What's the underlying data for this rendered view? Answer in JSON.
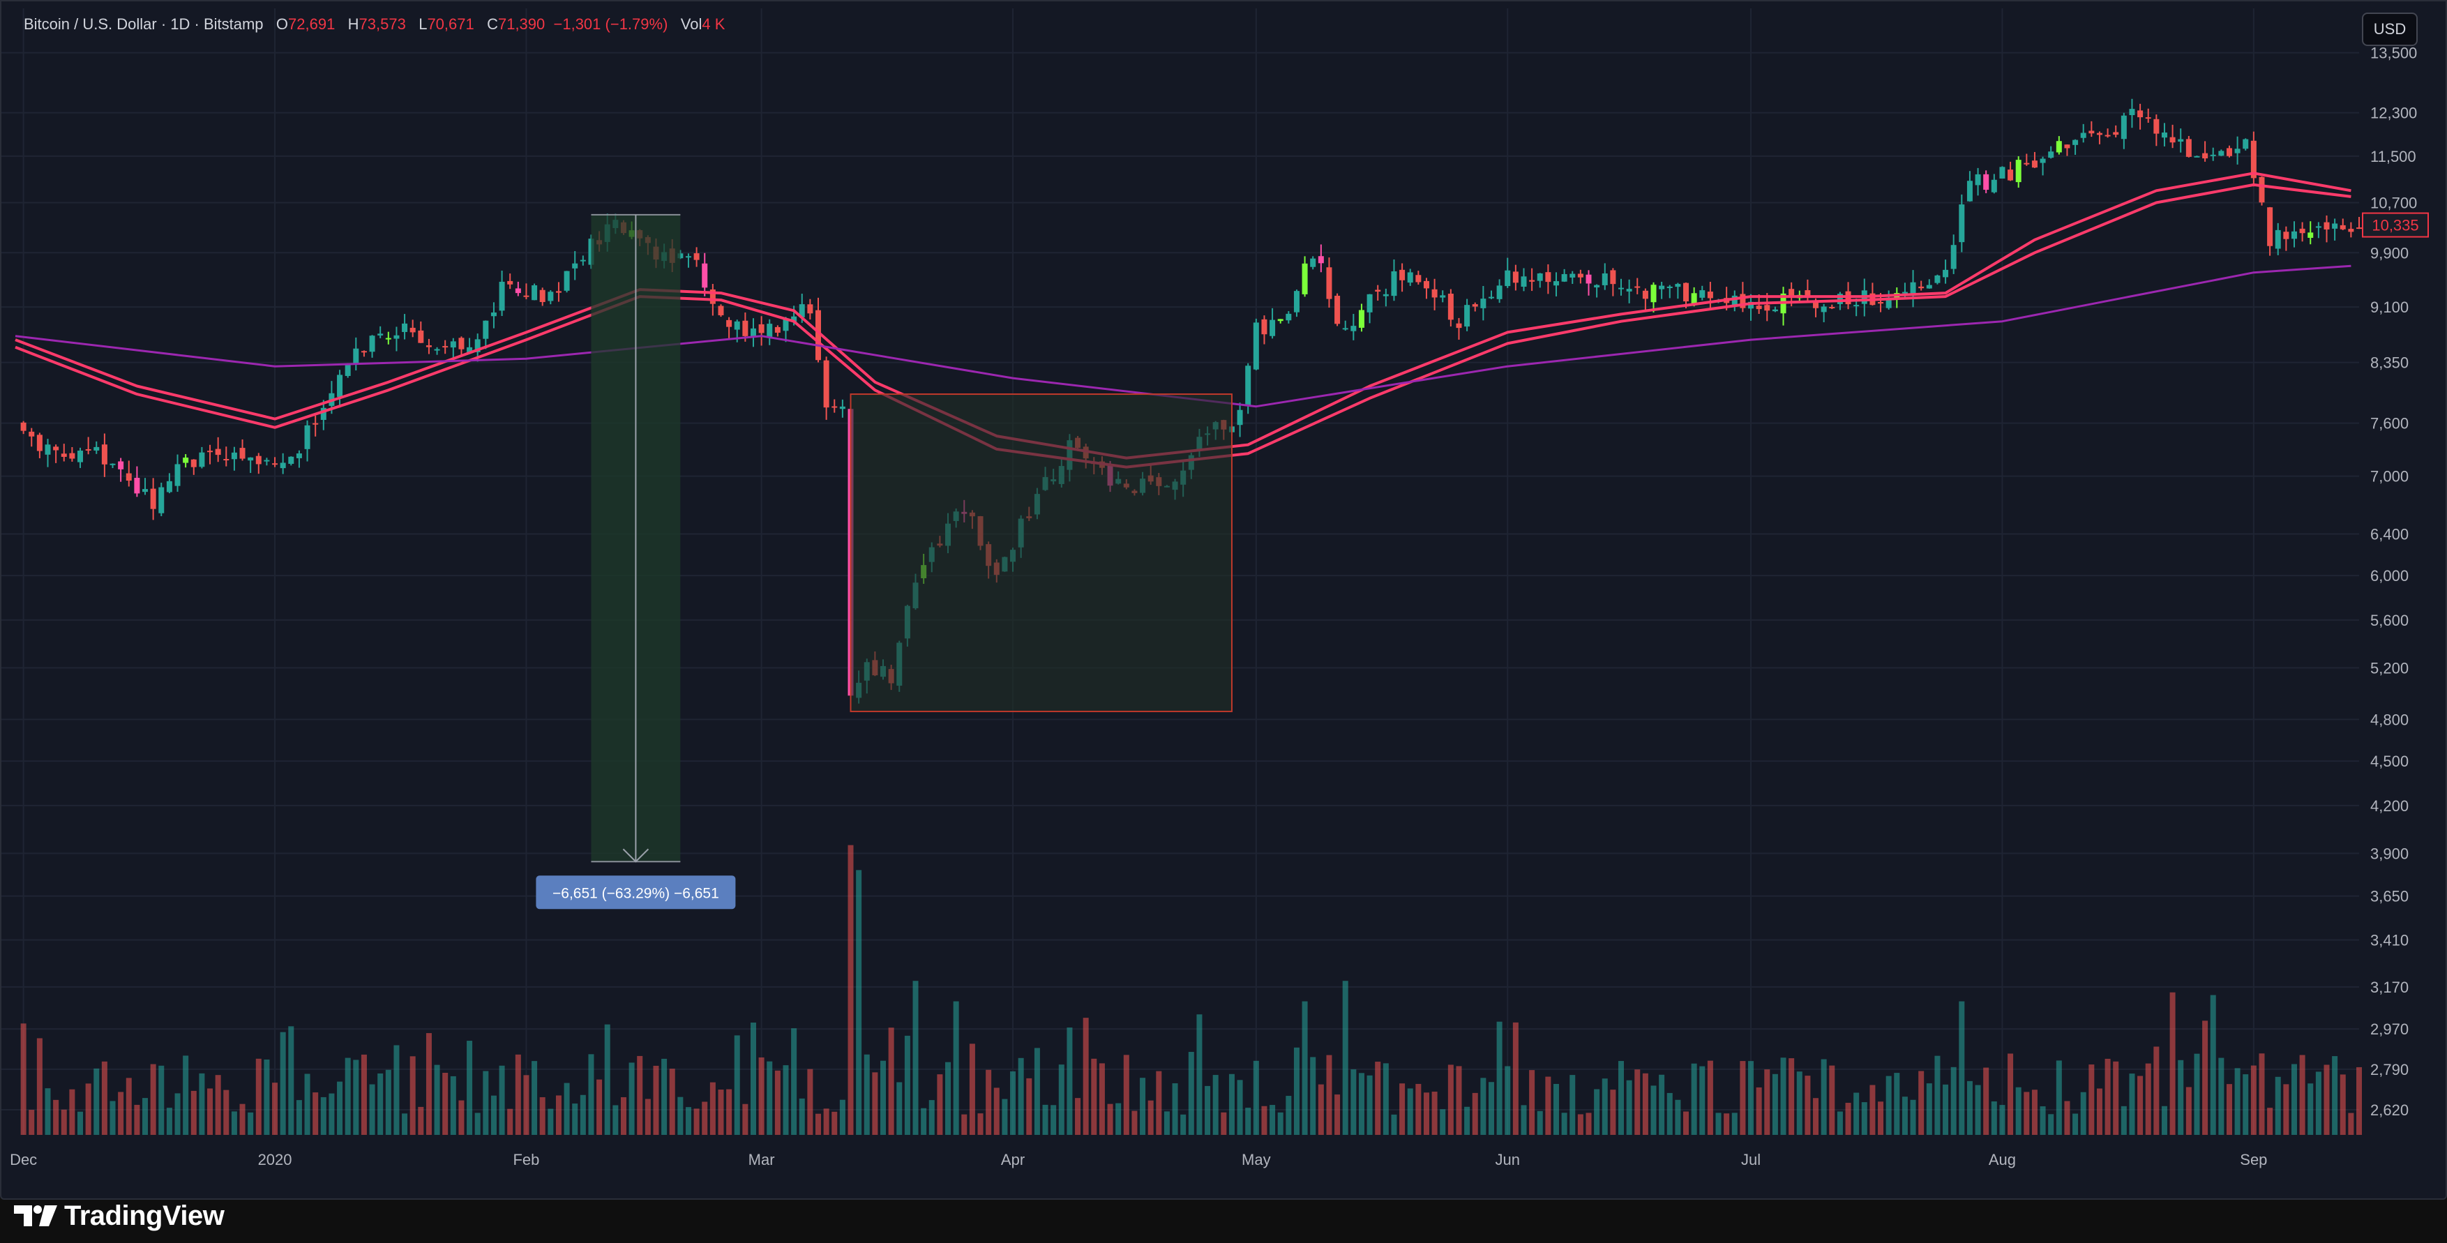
{
  "legend": {
    "symbol": "Bitcoin / U.S. Dollar · 1D · Bitstamp",
    "o_label": "O",
    "o": "72,691",
    "h_label": "H",
    "h": "73,573",
    "l_label": "L",
    "l": "70,671",
    "c_label": "C",
    "c": "71,390",
    "change": "−1,301 (−1.79%)",
    "vol_label": "Vol",
    "vol": "4 K"
  },
  "currency": "USD",
  "brand": {
    "name": "TradingView"
  },
  "colors": {
    "background": "#141824",
    "up": "#26a69a",
    "up_highlight": "#7cff3a",
    "down": "#ef5350",
    "down_highlight": "#ff4fa8",
    "ma_fast": "#ff3b6b",
    "ma_slow": "#9c27b0",
    "measure_green": "#1e3a2a",
    "measure_box": "#1f2e26",
    "measure_box_border": "#c0392b",
    "price_tag": "#f23645",
    "measure_label_bg": "#5b7fbf"
  },
  "icons": {
    "brand_logo": "tradingview-logo-icon"
  },
  "chart_data": {
    "type": "candlestick",
    "title": "Bitcoin / U.S. Dollar · 1D · Bitstamp",
    "x_range": [
      "2019-11-30",
      "2020-09-14"
    ],
    "x_tick_labels": [
      {
        "label": "Dec",
        "date": "2019-12-01"
      },
      {
        "label": "2020",
        "date": "2020-01-01"
      },
      {
        "label": "Feb",
        "date": "2020-02-01"
      },
      {
        "label": "Mar",
        "date": "2020-03-01"
      },
      {
        "label": "Apr",
        "date": "2020-04-01"
      },
      {
        "label": "May",
        "date": "2020-05-01"
      },
      {
        "label": "Jun",
        "date": "2020-06-01"
      },
      {
        "label": "Jul",
        "date": "2020-07-01"
      },
      {
        "label": "Aug",
        "date": "2020-08-01"
      },
      {
        "label": "Sep",
        "date": "2020-09-01"
      }
    ],
    "y_scale": "log",
    "y_range": [
      2520,
      14000
    ],
    "y_ticks": [
      13500,
      12300,
      11500,
      10700,
      9900,
      9100,
      8350,
      7600,
      7000,
      6400,
      6000,
      5600,
      5200,
      4800,
      4500,
      4200,
      3900,
      3650,
      3410,
      3170,
      2970,
      2790,
      2620
    ],
    "last_price_tag": "10,335",
    "close_path": [
      [
        "2019-11-30",
        7600
      ],
      [
        "2019-12-04",
        7250
      ],
      [
        "2019-12-10",
        7250
      ],
      [
        "2019-12-17",
        6750
      ],
      [
        "2019-12-20",
        7150
      ],
      [
        "2019-12-26",
        7200
      ],
      [
        "2019-12-31",
        7200
      ],
      [
        "2020-01-04",
        7300
      ],
      [
        "2020-01-08",
        8050
      ],
      [
        "2020-01-14",
        8800
      ],
      [
        "2020-01-19",
        8700
      ],
      [
        "2020-01-25",
        8500
      ],
      [
        "2020-01-29",
        9350
      ],
      [
        "2020-02-04",
        9300
      ],
      [
        "2020-02-08",
        9850
      ],
      [
        "2020-02-11",
        10250
      ],
      [
        "2020-02-14",
        10300
      ],
      [
        "2020-02-18",
        9800
      ],
      [
        "2020-02-22",
        9700
      ],
      [
        "2020-02-26",
        8800
      ],
      [
        "2020-03-03",
        8800
      ],
      [
        "2020-03-07",
        9100
      ],
      [
        "2020-03-09",
        7900
      ],
      [
        "2020-03-11",
        7800
      ],
      [
        "2020-03-12",
        5000
      ],
      [
        "2020-03-14",
        5250
      ],
      [
        "2020-03-17",
        5100
      ],
      [
        "2020-03-20",
        6000
      ],
      [
        "2020-03-23",
        6300
      ],
      [
        "2020-03-26",
        6700
      ],
      [
        "2020-03-30",
        6000
      ],
      [
        "2020-04-04",
        6800
      ],
      [
        "2020-04-08",
        7300
      ],
      [
        "2020-04-12",
        7000
      ],
      [
        "2020-04-16",
        6900
      ],
      [
        "2020-04-20",
        6900
      ],
      [
        "2020-04-25",
        7500
      ],
      [
        "2020-04-29",
        7700
      ],
      [
        "2020-05-01",
        8800
      ],
      [
        "2020-05-05",
        9000
      ],
      [
        "2020-05-08",
        9900
      ],
      [
        "2020-05-12",
        8700
      ],
      [
        "2020-05-15",
        9300
      ],
      [
        "2020-05-20",
        9600
      ],
      [
        "2020-05-26",
        8900
      ],
      [
        "2020-06-01",
        9500
      ],
      [
        "2020-06-08",
        9600
      ],
      [
        "2020-06-15",
        9400
      ],
      [
        "2020-06-22",
        9300
      ],
      [
        "2020-06-30",
        9100
      ],
      [
        "2020-07-07",
        9200
      ],
      [
        "2020-07-14",
        9200
      ],
      [
        "2020-07-21",
        9400
      ],
      [
        "2020-07-25",
        9700
      ],
      [
        "2020-07-28",
        11000
      ],
      [
        "2020-08-02",
        11200
      ],
      [
        "2020-08-08",
        11700
      ],
      [
        "2020-08-14",
        11800
      ],
      [
        "2020-08-17",
        12300
      ],
      [
        "2020-08-24",
        11600
      ],
      [
        "2020-08-31",
        11700
      ],
      [
        "2020-09-03",
        10100
      ],
      [
        "2020-09-07",
        10300
      ],
      [
        "2020-09-13",
        10335
      ]
    ],
    "series": [
      {
        "name": "",
        "type": "line",
        "points": [
          [
            "2019-11-30",
            8550
          ],
          [
            "2019-12-15",
            7950
          ],
          [
            "2020-01-01",
            7550
          ],
          [
            "2020-01-15",
            8000
          ],
          [
            "2020-02-01",
            8650
          ],
          [
            "2020-02-15",
            9250
          ],
          [
            "2020-02-25",
            9200
          ],
          [
            "2020-03-05",
            8900
          ],
          [
            "2020-03-15",
            8000
          ],
          [
            "2020-03-30",
            7300
          ],
          [
            "2020-04-15",
            7100
          ],
          [
            "2020-04-30",
            7250
          ],
          [
            "2020-05-15",
            7900
          ],
          [
            "2020-06-01",
            8600
          ],
          [
            "2020-06-15",
            8900
          ],
          [
            "2020-07-01",
            9150
          ],
          [
            "2020-07-15",
            9200
          ],
          [
            "2020-07-25",
            9250
          ],
          [
            "2020-08-05",
            9900
          ],
          [
            "2020-08-20",
            10700
          ],
          [
            "2020-09-01",
            11000
          ],
          [
            "2020-09-13",
            10800
          ]
        ]
      },
      {
        "name": "",
        "type": "line",
        "points": [
          [
            "2019-11-30",
            8650
          ],
          [
            "2019-12-15",
            8050
          ],
          [
            "2020-01-01",
            7650
          ],
          [
            "2020-01-15",
            8100
          ],
          [
            "2020-02-01",
            8750
          ],
          [
            "2020-02-15",
            9350
          ],
          [
            "2020-02-25",
            9300
          ],
          [
            "2020-03-05",
            9050
          ],
          [
            "2020-03-15",
            8100
          ],
          [
            "2020-03-30",
            7450
          ],
          [
            "2020-04-15",
            7200
          ],
          [
            "2020-04-30",
            7350
          ],
          [
            "2020-05-15",
            8050
          ],
          [
            "2020-06-01",
            8750
          ],
          [
            "2020-06-15",
            9000
          ],
          [
            "2020-07-01",
            9250
          ],
          [
            "2020-07-15",
            9250
          ],
          [
            "2020-07-25",
            9300
          ],
          [
            "2020-08-05",
            10100
          ],
          [
            "2020-08-20",
            10900
          ],
          [
            "2020-09-01",
            11200
          ],
          [
            "2020-09-13",
            10900
          ]
        ]
      },
      {
        "name": "",
        "type": "line",
        "points": [
          [
            "2019-11-30",
            8700
          ],
          [
            "2020-01-01",
            8300
          ],
          [
            "2020-02-01",
            8400
          ],
          [
            "2020-03-01",
            8700
          ],
          [
            "2020-04-01",
            8150
          ],
          [
            "2020-05-01",
            7800
          ],
          [
            "2020-06-01",
            8300
          ],
          [
            "2020-07-01",
            8650
          ],
          [
            "2020-08-01",
            8900
          ],
          [
            "2020-09-01",
            9600
          ],
          [
            "2020-09-13",
            9700
          ]
        ]
      }
    ],
    "volume_highlights": [
      [
        "2020-03-12",
        3950
      ],
      [
        "2020-03-13",
        3800
      ],
      [
        "2020-03-20",
        3200
      ],
      [
        "2020-05-07",
        3100
      ],
      [
        "2020-05-12",
        3200
      ],
      [
        "2020-07-27",
        3100
      ],
      [
        "2020-06-02",
        3000
      ],
      [
        "2020-03-25",
        3100
      ]
    ],
    "annotations": [
      {
        "type": "measure-down",
        "date_start": "2020-02-09",
        "date_end": "2020-02-20",
        "price_top": 10500,
        "price_bottom": 3850,
        "label": "−6,651 (−63.29%) −6,651"
      },
      {
        "type": "range-box",
        "date_start": "2020-03-12",
        "date_end": "2020-04-28",
        "price_top": 7950,
        "price_bottom": 4860
      }
    ]
  }
}
